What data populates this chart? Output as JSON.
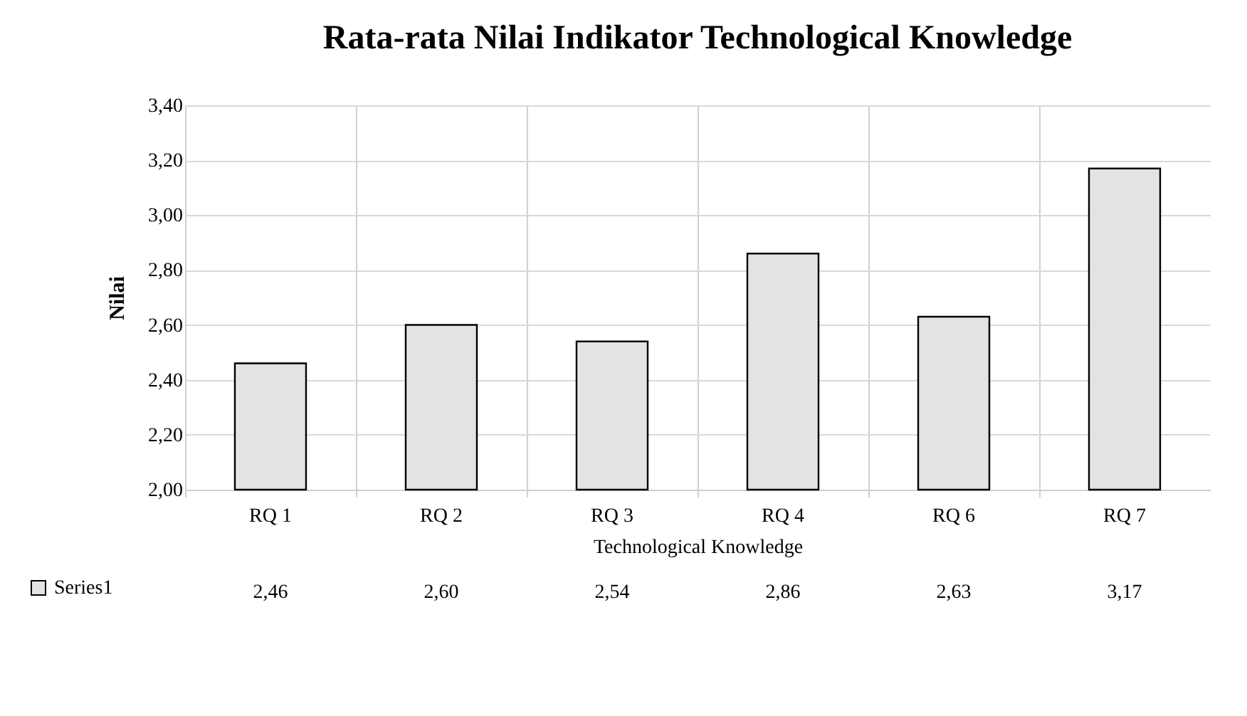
{
  "chart_data": {
    "type": "bar",
    "title": "Rata-rata Nilai Indikator Technological Knowledge",
    "xlabel": "Technological Knowledge",
    "ylabel": "Nilai",
    "categories": [
      "RQ 1",
      "RQ 2",
      "RQ 3",
      "RQ 4",
      "RQ 6",
      "RQ 7"
    ],
    "series": [
      {
        "name": "Series1",
        "color": "#e3e3e3",
        "values": [
          2.46,
          2.6,
          2.54,
          2.86,
          2.63,
          3.17
        ],
        "value_labels": [
          "2,46",
          "2,60",
          "2,54",
          "2,86",
          "2,63",
          "3,17"
        ]
      }
    ],
    "ylim": [
      2.0,
      3.4
    ],
    "yticks": [
      {
        "value": 2.0,
        "label": "2,00"
      },
      {
        "value": 2.2,
        "label": "2,20"
      },
      {
        "value": 2.4,
        "label": "2,40"
      },
      {
        "value": 2.6,
        "label": "2,60"
      },
      {
        "value": 2.8,
        "label": "2,80"
      },
      {
        "value": 3.0,
        "label": "3,00"
      },
      {
        "value": 3.2,
        "label": "3,20"
      },
      {
        "value": 3.4,
        "label": "3,40"
      }
    ],
    "grid": "y",
    "legend": "bottom left"
  }
}
